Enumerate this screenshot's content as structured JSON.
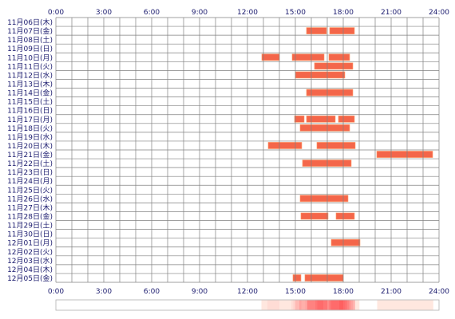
{
  "chart_data": {
    "type": "gantt-timeline",
    "title": "",
    "x_ticks": [
      "0:00",
      "3:00",
      "6:00",
      "9:00",
      "12:00",
      "15:00",
      "18:00",
      "21:00",
      "24:00"
    ],
    "xlim_hours": [
      0,
      24
    ],
    "grid": true,
    "bar_color": "#f4664a",
    "bar_edge_color": "#ff9966",
    "heat_colors": [
      "#fff2ea",
      "#ff6060"
    ],
    "days": [
      {
        "label": "11月06日(木)",
        "intervals": []
      },
      {
        "label": "11月07日(金)",
        "intervals": [
          [
            15.7,
            16.95
          ],
          [
            17.15,
            18.7
          ]
        ]
      },
      {
        "label": "11月08日(土)",
        "intervals": []
      },
      {
        "label": "11月09日(日)",
        "intervals": []
      },
      {
        "label": "11月10日(月)",
        "intervals": [
          [
            12.9,
            14.0
          ],
          [
            14.8,
            16.8
          ],
          [
            17.1,
            18.4
          ]
        ]
      },
      {
        "label": "11月11日(火)",
        "intervals": [
          [
            16.2,
            18.6
          ]
        ]
      },
      {
        "label": "11月12日(水)",
        "intervals": [
          [
            15.0,
            18.1
          ]
        ]
      },
      {
        "label": "11月13日(木)",
        "intervals": []
      },
      {
        "label": "11月14日(金)",
        "intervals": [
          [
            15.7,
            18.6
          ]
        ]
      },
      {
        "label": "11月15日(土)",
        "intervals": []
      },
      {
        "label": "11月16日(日)",
        "intervals": []
      },
      {
        "label": "11月17日(月)",
        "intervals": [
          [
            14.95,
            15.55
          ],
          [
            15.7,
            17.5
          ],
          [
            17.7,
            18.7
          ]
        ]
      },
      {
        "label": "11月18日(火)",
        "intervals": [
          [
            15.3,
            18.4
          ]
        ]
      },
      {
        "label": "11月19日(水)",
        "intervals": []
      },
      {
        "label": "11月20日(木)",
        "intervals": [
          [
            13.3,
            15.4
          ],
          [
            16.35,
            18.75
          ]
        ]
      },
      {
        "label": "11月21日(金)",
        "intervals": [
          [
            20.1,
            23.6
          ]
        ]
      },
      {
        "label": "11月22日(土)",
        "intervals": [
          [
            15.45,
            18.5
          ]
        ]
      },
      {
        "label": "11月23日(日)",
        "intervals": []
      },
      {
        "label": "11月24日(月)",
        "intervals": []
      },
      {
        "label": "11月25日(火)",
        "intervals": []
      },
      {
        "label": "11月26日(水)",
        "intervals": [
          [
            15.3,
            18.3
          ]
        ]
      },
      {
        "label": "11月27日(木)",
        "intervals": []
      },
      {
        "label": "11月28日(金)",
        "intervals": [
          [
            15.35,
            17.05
          ],
          [
            17.55,
            18.7
          ]
        ]
      },
      {
        "label": "11月29日(土)",
        "intervals": []
      },
      {
        "label": "11月30日(日)",
        "intervals": []
      },
      {
        "label": "12月01日(月)",
        "intervals": [
          [
            17.25,
            19.05
          ]
        ]
      },
      {
        "label": "12月02日(火)",
        "intervals": []
      },
      {
        "label": "12月03日(水)",
        "intervals": []
      },
      {
        "label": "12月04日(木)",
        "intervals": []
      },
      {
        "label": "12月05日(金)",
        "intervals": [
          [
            14.85,
            15.35
          ],
          [
            15.6,
            18.0
          ]
        ]
      }
    ]
  }
}
